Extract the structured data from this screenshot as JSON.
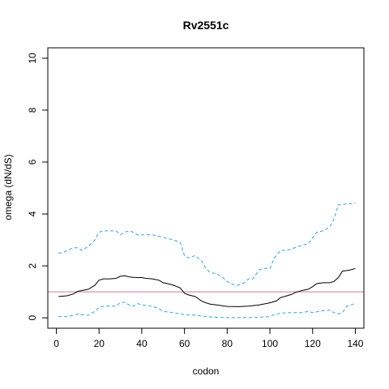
{
  "chart_data": {
    "type": "line",
    "title": "Rv2551c",
    "xlabel": "codon",
    "ylabel": "omega (dN/dS)",
    "xlim": [
      -4,
      144
    ],
    "ylim": [
      -0.4,
      10.4
    ],
    "x_ticks": [
      0,
      20,
      40,
      60,
      80,
      100,
      120,
      140
    ],
    "y_ticks": [
      0,
      2,
      4,
      6,
      8,
      10
    ],
    "grid": false,
    "reference_line": {
      "y": 1,
      "color": "#cc79a7"
    },
    "series": [
      {
        "role": "estimate",
        "color": "#000000",
        "style": "solid",
        "x": [
          1,
          5,
          8,
          10,
          12,
          15,
          18,
          20,
          22,
          25,
          28,
          30,
          32,
          34,
          36,
          38,
          40,
          42,
          45,
          48,
          50,
          52,
          55,
          58,
          60,
          62,
          65,
          68,
          70,
          72,
          75,
          78,
          80,
          85,
          90,
          95,
          100,
          103,
          105,
          108,
          110,
          112,
          115,
          118,
          120,
          122,
          125,
          128,
          130,
          132,
          134,
          136,
          138,
          140
        ],
        "y": [
          0.82,
          0.85,
          0.92,
          1.02,
          1.05,
          1.1,
          1.25,
          1.45,
          1.5,
          1.5,
          1.52,
          1.6,
          1.62,
          1.58,
          1.56,
          1.55,
          1.55,
          1.52,
          1.5,
          1.45,
          1.35,
          1.32,
          1.25,
          1.15,
          0.95,
          0.88,
          0.82,
          0.65,
          0.58,
          0.53,
          0.5,
          0.46,
          0.44,
          0.43,
          0.45,
          0.5,
          0.58,
          0.65,
          0.78,
          0.85,
          0.9,
          0.98,
          1.05,
          1.1,
          1.2,
          1.32,
          1.35,
          1.35,
          1.4,
          1.55,
          1.8,
          1.82,
          1.85,
          1.9
        ]
      },
      {
        "role": "upper",
        "color": "#29a6e0",
        "style": "dashed",
        "x": [
          1,
          3,
          5,
          8,
          10,
          12,
          15,
          18,
          20,
          22,
          25,
          28,
          30,
          32,
          34,
          36,
          38,
          40,
          45,
          50,
          55,
          58,
          60,
          62,
          65,
          68,
          70,
          72,
          75,
          78,
          80,
          82,
          85,
          88,
          90,
          92,
          95,
          97,
          100,
          102,
          105,
          108,
          110,
          115,
          118,
          120,
          122,
          125,
          128,
          130,
          132,
          134,
          136,
          138,
          140
        ],
        "y": [
          2.5,
          2.5,
          2.6,
          2.7,
          2.7,
          2.6,
          2.75,
          3.0,
          3.3,
          3.35,
          3.35,
          3.35,
          3.2,
          3.3,
          3.35,
          3.3,
          3.2,
          3.2,
          3.2,
          3.1,
          3.0,
          2.9,
          2.4,
          2.3,
          2.4,
          2.2,
          1.9,
          1.75,
          1.7,
          1.55,
          1.4,
          1.3,
          1.25,
          1.35,
          1.5,
          1.5,
          1.85,
          1.9,
          1.9,
          2.3,
          2.6,
          2.6,
          2.65,
          2.8,
          2.85,
          3.1,
          3.3,
          3.35,
          3.5,
          3.8,
          4.35,
          4.35,
          4.4,
          4.4,
          4.42
        ]
      },
      {
        "role": "lower",
        "color": "#29a6e0",
        "style": "dashed",
        "x": [
          1,
          5,
          8,
          10,
          12,
          15,
          18,
          20,
          22,
          25,
          28,
          30,
          32,
          34,
          36,
          38,
          40,
          45,
          48,
          50,
          55,
          58,
          60,
          65,
          70,
          75,
          80,
          85,
          90,
          95,
          100,
          102,
          105,
          110,
          115,
          118,
          120,
          125,
          128,
          130,
          132,
          134,
          136,
          138,
          140
        ],
        "y": [
          0.05,
          0.05,
          0.1,
          0.15,
          0.12,
          0.1,
          0.25,
          0.4,
          0.45,
          0.45,
          0.45,
          0.6,
          0.6,
          0.5,
          0.45,
          0.55,
          0.5,
          0.45,
          0.35,
          0.25,
          0.2,
          0.15,
          0.12,
          0.1,
          0.05,
          0.02,
          0.01,
          0.01,
          0.01,
          0.02,
          0.05,
          0.12,
          0.18,
          0.2,
          0.2,
          0.25,
          0.2,
          0.28,
          0.3,
          0.2,
          0.15,
          0.2,
          0.45,
          0.5,
          0.55
        ]
      }
    ]
  }
}
